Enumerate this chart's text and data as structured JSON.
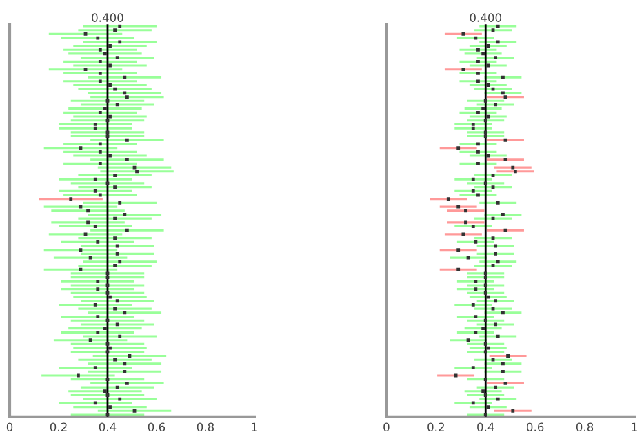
{
  "chart_data": [
    {
      "type": "bar",
      "orientation": "horizontal",
      "marker": "square",
      "tick_labels": "x",
      "xlim": [
        0,
        1
      ],
      "xticks": [
        0,
        0.2,
        0.4,
        0.6,
        0.8,
        1
      ],
      "ref_lines": [
        {
          "axis": "x",
          "value": 0.4,
          "label": "0.400",
          "color": "#000000"
        }
      ],
      "categories": [
        null,
        null,
        null,
        null,
        null,
        null,
        null,
        null,
        null,
        null,
        null,
        null,
        null,
        null,
        null,
        null,
        null,
        null,
        null,
        null,
        null,
        null,
        null,
        null,
        null,
        null,
        null,
        null,
        null,
        null,
        null,
        null,
        null,
        null,
        null,
        null,
        null,
        null,
        null,
        null,
        null,
        null,
        null,
        null,
        null,
        null,
        null,
        null,
        null,
        null,
        null,
        null,
        null,
        null,
        null,
        null,
        null,
        null,
        null,
        null,
        null,
        null,
        null,
        null,
        null,
        null,
        null,
        null,
        null,
        null,
        null,
        null,
        null,
        null,
        null,
        null,
        null,
        null,
        null,
        null,
        null,
        null,
        null,
        null,
        null,
        null,
        null,
        null,
        null,
        null,
        null,
        null,
        null,
        null,
        null,
        null,
        null,
        null,
        null,
        null
      ],
      "series": [
        {
          "base": [
            0.3,
            0.28,
            0.16,
            0.21,
            0.3,
            0.26,
            0.22,
            0.24,
            0.29,
            0.22,
            0.26,
            0.16,
            0.22,
            0.32,
            0.22,
            0.26,
            0.28,
            0.32,
            0.33,
            0.25,
            0.29,
            0.24,
            0.22,
            0.26,
            0.25,
            0.2,
            0.2,
            0.25,
            0.25,
            0.33,
            0.22,
            0.14,
            0.22,
            0.26,
            0.33,
            0.22,
            0.36,
            0.37,
            0.28,
            0.2,
            0.25,
            0.28,
            0.2,
            0.22,
            0.12,
            0.3,
            0.14,
            0.17,
            0.32,
            0.28,
            0.17,
            0.2,
            0.33,
            0.16,
            0.28,
            0.21,
            0.29,
            0.14,
            0.29,
            0.18,
            0.3,
            0.28,
            0.14,
            0.25,
            0.25,
            0.21,
            0.25,
            0.21,
            0.25,
            0.26,
            0.29,
            0.2,
            0.28,
            0.32,
            0.21,
            0.25,
            0.29,
            0.24,
            0.21,
            0.3,
            0.18,
            0.25,
            0.26,
            0.25,
            0.34,
            0.28,
            0.32,
            0.2,
            0.32,
            0.13,
            0.25,
            0.33,
            0.29,
            0.24,
            0.25,
            0.3,
            0.2,
            0.26,
            0.36,
            0.25
          ],
          "values": [
            0.3,
            0.3,
            0.3,
            0.3,
            0.3,
            0.3,
            0.3,
            0.3,
            0.3,
            0.3,
            0.3,
            0.3,
            0.3,
            0.3,
            0.3,
            0.3,
            0.3,
            0.3,
            0.3,
            0.3,
            0.3,
            0.3,
            0.3,
            0.3,
            0.3,
            0.3,
            0.3,
            0.3,
            0.3,
            0.3,
            0.3,
            0.3,
            0.3,
            0.3,
            0.3,
            0.3,
            0.3,
            0.3,
            0.3,
            0.3,
            0.3,
            0.3,
            0.3,
            0.3,
            0.26,
            0.3,
            0.3,
            0.3,
            0.3,
            0.3,
            0.3,
            0.3,
            0.3,
            0.3,
            0.3,
            0.3,
            0.3,
            0.3,
            0.3,
            0.3,
            0.3,
            0.3,
            0.3,
            0.3,
            0.3,
            0.3,
            0.3,
            0.3,
            0.3,
            0.3,
            0.3,
            0.3,
            0.3,
            0.3,
            0.3,
            0.3,
            0.3,
            0.3,
            0.3,
            0.3,
            0.3,
            0.3,
            0.3,
            0.3,
            0.3,
            0.3,
            0.3,
            0.3,
            0.3,
            0.3,
            0.3,
            0.3,
            0.3,
            0.3,
            0.3,
            0.3,
            0.3,
            0.3,
            0.3,
            0.3
          ],
          "colors": [
            "#99ff99",
            "#99ff99",
            "#99ff99",
            "#99ff99",
            "#99ff99",
            "#99ff99",
            "#99ff99",
            "#99ff99",
            "#99ff99",
            "#99ff99",
            "#99ff99",
            "#99ff99",
            "#99ff99",
            "#99ff99",
            "#99ff99",
            "#99ff99",
            "#99ff99",
            "#99ff99",
            "#99ff99",
            "#99ff99",
            "#99ff99",
            "#99ff99",
            "#99ff99",
            "#99ff99",
            "#99ff99",
            "#99ff99",
            "#99ff99",
            "#99ff99",
            "#99ff99",
            "#99ff99",
            "#99ff99",
            "#99ff99",
            "#99ff99",
            "#99ff99",
            "#99ff99",
            "#99ff99",
            "#99ff99",
            "#99ff99",
            "#99ff99",
            "#99ff99",
            "#99ff99",
            "#99ff99",
            "#99ff99",
            "#99ff99",
            "#ff9999",
            "#99ff99",
            "#99ff99",
            "#99ff99",
            "#99ff99",
            "#99ff99",
            "#99ff99",
            "#99ff99",
            "#99ff99",
            "#99ff99",
            "#99ff99",
            "#99ff99",
            "#99ff99",
            "#99ff99",
            "#99ff99",
            "#99ff99",
            "#99ff99",
            "#99ff99",
            "#99ff99",
            "#99ff99",
            "#99ff99",
            "#99ff99",
            "#99ff99",
            "#99ff99",
            "#99ff99",
            "#99ff99",
            "#99ff99",
            "#99ff99",
            "#99ff99",
            "#99ff99",
            "#99ff99",
            "#99ff99",
            "#99ff99",
            "#99ff99",
            "#99ff99",
            "#99ff99",
            "#99ff99",
            "#99ff99",
            "#99ff99",
            "#99ff99",
            "#99ff99",
            "#99ff99",
            "#99ff99",
            "#99ff99",
            "#99ff99",
            "#99ff99",
            "#99ff99",
            "#99ff99",
            "#99ff99",
            "#99ff99",
            "#99ff99",
            "#99ff99",
            "#99ff99",
            "#99ff99",
            "#99ff99",
            "#99ff99"
          ]
        },
        {
          "type": "scatter",
          "color": "#333333",
          "values": [
            0.45,
            0.43,
            0.31,
            0.36,
            0.45,
            0.41,
            0.37,
            0.39,
            0.44,
            0.37,
            0.41,
            0.31,
            0.37,
            0.47,
            0.37,
            0.41,
            0.43,
            0.47,
            0.48,
            0.4,
            0.44,
            0.39,
            0.37,
            0.41,
            0.4,
            0.35,
            0.35,
            0.4,
            0.4,
            0.48,
            0.37,
            0.29,
            0.37,
            0.41,
            0.48,
            0.37,
            0.51,
            0.52,
            0.43,
            0.35,
            0.4,
            0.43,
            0.35,
            0.37,
            0.25,
            0.45,
            0.29,
            0.32,
            0.47,
            0.43,
            0.32,
            0.35,
            0.48,
            0.31,
            0.43,
            0.36,
            0.44,
            0.29,
            0.44,
            0.33,
            0.45,
            0.43,
            0.29,
            0.4,
            0.4,
            0.36,
            0.4,
            0.36,
            0.4,
            0.41,
            0.44,
            0.35,
            0.43,
            0.47,
            0.36,
            0.4,
            0.44,
            0.39,
            0.36,
            0.45,
            0.33,
            0.4,
            0.41,
            0.4,
            0.49,
            0.43,
            0.47,
            0.35,
            0.47,
            0.28,
            0.4,
            0.48,
            0.44,
            0.39,
            0.4,
            0.45,
            0.35,
            0.41,
            0.51,
            0.4
          ]
        }
      ]
    },
    {
      "type": "bar",
      "orientation": "horizontal",
      "marker": "square",
      "tick_labels": "x",
      "xlim": [
        0,
        1
      ],
      "xticks": [
        0,
        0.2,
        0.4,
        0.6,
        0.8,
        1
      ],
      "ref_lines": [
        {
          "axis": "x",
          "value": 0.4,
          "label": "0.400",
          "color": "#000000"
        }
      ],
      "categories": [
        null,
        null,
        null,
        null,
        null,
        null,
        null,
        null,
        null,
        null,
        null,
        null,
        null,
        null,
        null,
        null,
        null,
        null,
        null,
        null,
        null,
        null,
        null,
        null,
        null,
        null,
        null,
        null,
        null,
        null,
        null,
        null,
        null,
        null,
        null,
        null,
        null,
        null,
        null,
        null,
        null,
        null,
        null,
        null,
        null,
        null,
        null,
        null,
        null,
        null,
        null,
        null,
        null,
        null,
        null,
        null,
        null,
        null,
        null,
        null,
        null,
        null,
        null,
        null,
        null,
        null,
        null,
        null,
        null,
        null,
        null,
        null,
        null,
        null,
        null,
        null,
        null,
        null,
        null,
        null,
        null,
        null,
        null,
        null,
        null,
        null,
        null,
        null,
        null,
        null,
        null,
        null,
        null,
        null,
        null,
        null,
        null,
        null,
        null,
        null
      ],
      "series": [
        {
          "base": [
            0.375,
            0.355,
            0.235,
            0.285,
            0.375,
            0.335,
            0.295,
            0.315,
            0.365,
            0.295,
            0.335,
            0.235,
            0.295,
            0.395,
            0.295,
            0.335,
            0.355,
            0.395,
            0.405,
            0.325,
            0.365,
            0.315,
            0.295,
            0.335,
            0.325,
            0.275,
            0.275,
            0.325,
            0.325,
            0.405,
            0.295,
            0.215,
            0.295,
            0.335,
            0.405,
            0.295,
            0.435,
            0.445,
            0.355,
            0.275,
            0.325,
            0.355,
            0.275,
            0.295,
            0.175,
            0.375,
            0.215,
            0.245,
            0.395,
            0.355,
            0.245,
            0.275,
            0.405,
            0.235,
            0.355,
            0.285,
            0.365,
            0.215,
            0.365,
            0.255,
            0.375,
            0.355,
            0.215,
            0.325,
            0.325,
            0.285,
            0.325,
            0.285,
            0.325,
            0.335,
            0.365,
            0.275,
            0.355,
            0.395,
            0.285,
            0.325,
            0.365,
            0.315,
            0.285,
            0.375,
            0.255,
            0.325,
            0.335,
            0.325,
            0.415,
            0.355,
            0.395,
            0.275,
            0.395,
            0.205,
            0.325,
            0.405,
            0.365,
            0.315,
            0.325,
            0.375,
            0.275,
            0.335,
            0.435,
            0.325
          ],
          "values": [
            0.15,
            0.15,
            0.15,
            0.15,
            0.15,
            0.15,
            0.15,
            0.15,
            0.15,
            0.15,
            0.15,
            0.15,
            0.15,
            0.15,
            0.15,
            0.15,
            0.15,
            0.15,
            0.15,
            0.15,
            0.15,
            0.15,
            0.15,
            0.15,
            0.15,
            0.15,
            0.15,
            0.15,
            0.15,
            0.15,
            0.15,
            0.15,
            0.15,
            0.15,
            0.15,
            0.15,
            0.15,
            0.15,
            0.15,
            0.15,
            0.15,
            0.15,
            0.15,
            0.15,
            0.15,
            0.15,
            0.15,
            0.15,
            0.15,
            0.15,
            0.15,
            0.15,
            0.15,
            0.15,
            0.15,
            0.15,
            0.15,
            0.15,
            0.15,
            0.15,
            0.15,
            0.15,
            0.15,
            0.15,
            0.15,
            0.15,
            0.15,
            0.15,
            0.15,
            0.15,
            0.15,
            0.15,
            0.15,
            0.15,
            0.15,
            0.15,
            0.15,
            0.15,
            0.15,
            0.15,
            0.15,
            0.15,
            0.15,
            0.15,
            0.15,
            0.15,
            0.15,
            0.15,
            0.15,
            0.15,
            0.15,
            0.15,
            0.15,
            0.15,
            0.15,
            0.15,
            0.15,
            0.15,
            0.15,
            0.15
          ],
          "colors": [
            "#99ff99",
            "#99ff99",
            "#ff9999",
            "#99ff99",
            "#99ff99",
            "#99ff99",
            "#99ff99",
            "#99ff99",
            "#99ff99",
            "#99ff99",
            "#99ff99",
            "#ff9999",
            "#99ff99",
            "#99ff99",
            "#99ff99",
            "#99ff99",
            "#99ff99",
            "#99ff99",
            "#ff9999",
            "#99ff99",
            "#99ff99",
            "#99ff99",
            "#99ff99",
            "#99ff99",
            "#99ff99",
            "#99ff99",
            "#99ff99",
            "#99ff99",
            "#99ff99",
            "#ff9999",
            "#99ff99",
            "#ff9999",
            "#99ff99",
            "#99ff99",
            "#ff9999",
            "#99ff99",
            "#ff9999",
            "#ff9999",
            "#99ff99",
            "#99ff99",
            "#99ff99",
            "#99ff99",
            "#99ff99",
            "#99ff99",
            "#ff9999",
            "#99ff99",
            "#ff9999",
            "#ff9999",
            "#99ff99",
            "#99ff99",
            "#ff9999",
            "#99ff99",
            "#ff9999",
            "#ff9999",
            "#99ff99",
            "#99ff99",
            "#99ff99",
            "#ff9999",
            "#99ff99",
            "#99ff99",
            "#99ff99",
            "#99ff99",
            "#ff9999",
            "#99ff99",
            "#99ff99",
            "#99ff99",
            "#99ff99",
            "#99ff99",
            "#99ff99",
            "#99ff99",
            "#99ff99",
            "#99ff99",
            "#99ff99",
            "#99ff99",
            "#99ff99",
            "#99ff99",
            "#99ff99",
            "#99ff99",
            "#99ff99",
            "#99ff99",
            "#99ff99",
            "#99ff99",
            "#99ff99",
            "#99ff99",
            "#ff9999",
            "#99ff99",
            "#99ff99",
            "#99ff99",
            "#99ff99",
            "#ff9999",
            "#99ff99",
            "#ff9999",
            "#99ff99",
            "#99ff99",
            "#99ff99",
            "#99ff99",
            "#99ff99",
            "#99ff99",
            "#ff9999",
            "#99ff99"
          ]
        },
        {
          "type": "scatter",
          "color": "#333333",
          "values": [
            0.45,
            0.43,
            0.31,
            0.36,
            0.45,
            0.41,
            0.37,
            0.39,
            0.44,
            0.37,
            0.41,
            0.31,
            0.37,
            0.47,
            0.37,
            0.41,
            0.43,
            0.47,
            0.48,
            0.4,
            0.44,
            0.39,
            0.37,
            0.41,
            0.4,
            0.35,
            0.35,
            0.4,
            0.4,
            0.48,
            0.37,
            0.29,
            0.37,
            0.41,
            0.48,
            0.37,
            0.51,
            0.52,
            0.43,
            0.35,
            0.4,
            0.43,
            0.35,
            0.37,
            0.25,
            0.45,
            0.29,
            0.32,
            0.47,
            0.43,
            0.32,
            0.35,
            0.48,
            0.31,
            0.43,
            0.36,
            0.44,
            0.29,
            0.44,
            0.33,
            0.45,
            0.43,
            0.29,
            0.4,
            0.4,
            0.36,
            0.4,
            0.36,
            0.4,
            0.41,
            0.44,
            0.35,
            0.43,
            0.47,
            0.36,
            0.4,
            0.44,
            0.39,
            0.36,
            0.45,
            0.33,
            0.4,
            0.41,
            0.4,
            0.49,
            0.43,
            0.47,
            0.35,
            0.47,
            0.28,
            0.4,
            0.48,
            0.44,
            0.39,
            0.4,
            0.45,
            0.35,
            0.41,
            0.51,
            0.4
          ]
        }
      ]
    }
  ]
}
